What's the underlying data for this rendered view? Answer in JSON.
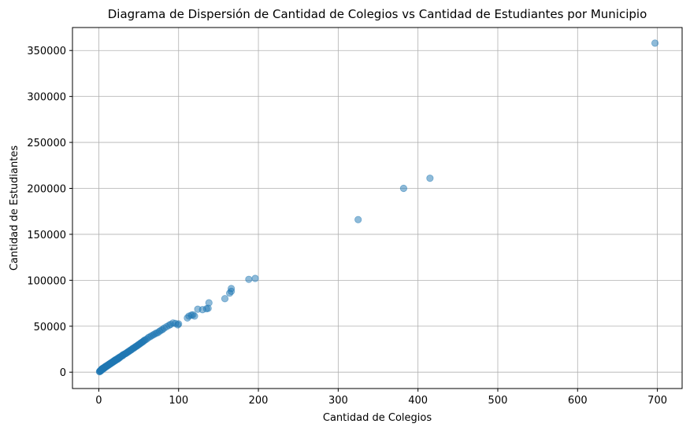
{
  "chart_data": {
    "type": "scatter",
    "title": "Diagrama de Dispersión de Cantidad de Colegios vs Cantidad de Estudiantes por Municipio",
    "xlabel": "Cantidad de Colegios",
    "ylabel": "Cantidad de Estudiantes",
    "xlim": [
      -33,
      731
    ],
    "ylim": [
      -17800,
      375000
    ],
    "xticks": [
      0,
      100,
      200,
      300,
      400,
      500,
      600,
      700
    ],
    "yticks": [
      0,
      50000,
      100000,
      150000,
      200000,
      250000,
      300000,
      350000
    ],
    "grid": true,
    "marker_color": "#1f77b4",
    "marker_alpha": 0.5,
    "x": [
      1,
      1,
      2,
      2,
      2,
      3,
      3,
      3,
      4,
      4,
      4,
      5,
      5,
      5,
      6,
      6,
      6,
      7,
      7,
      8,
      8,
      8,
      9,
      9,
      10,
      10,
      11,
      11,
      12,
      12,
      13,
      13,
      14,
      14,
      15,
      15,
      16,
      16,
      17,
      17,
      18,
      18,
      19,
      19,
      20,
      20,
      21,
      21,
      22,
      22,
      23,
      24,
      24,
      25,
      26,
      26,
      27,
      28,
      29,
      30,
      30,
      31,
      32,
      33,
      34,
      35,
      36,
      37,
      38,
      39,
      40,
      41,
      42,
      43,
      44,
      45,
      46,
      47,
      48,
      49,
      50,
      51,
      52,
      53,
      54,
      55,
      56,
      57,
      58,
      60,
      62,
      64,
      66,
      68,
      70,
      72,
      74,
      76,
      78,
      80,
      82,
      85,
      88,
      90,
      93,
      96,
      99,
      100,
      111,
      113,
      116,
      118,
      120,
      124,
      130,
      135,
      137,
      138,
      158,
      164,
      166,
      166,
      188,
      196,
      325,
      382,
      415,
      697
    ],
    "y": [
      500,
      800,
      1100,
      1500,
      1900,
      1800,
      2300,
      2700,
      2700,
      3200,
      3600,
      3200,
      3800,
      4200,
      3900,
      4400,
      4800,
      4600,
      5100,
      5200,
      5700,
      6100,
      5800,
      6400,
      6500,
      7100,
      7000,
      7600,
      7600,
      8200,
      8200,
      8800,
      8800,
      9400,
      9300,
      9900,
      10000,
      10500,
      10500,
      11000,
      11100,
      11700,
      11700,
      12300,
      12300,
      12900,
      12800,
      13500,
      13400,
      14000,
      14000,
      14300,
      15200,
      15500,
      15600,
      16300,
      16500,
      17300,
      17700,
      18000,
      18700,
      19000,
      19600,
      20000,
      20500,
      21000,
      21800,
      22300,
      22700,
      23600,
      24000,
      24500,
      25400,
      26000,
      26300,
      27000,
      27700,
      28200,
      28600,
      29500,
      30000,
      30600,
      31200,
      32000,
      32400,
      33000,
      33800,
      34500,
      35000,
      36000,
      37500,
      38500,
      39500,
      40500,
      41500,
      42500,
      43000,
      44500,
      45500,
      46500,
      48000,
      49500,
      51000,
      52000,
      53500,
      53000,
      51500,
      52500,
      59000,
      61000,
      62000,
      62500,
      61000,
      68500,
      68000,
      69000,
      69500,
      75500,
      80000,
      86000,
      88000,
      91000,
      101000,
      102000,
      166000,
      200000,
      211000,
      358000
    ]
  }
}
